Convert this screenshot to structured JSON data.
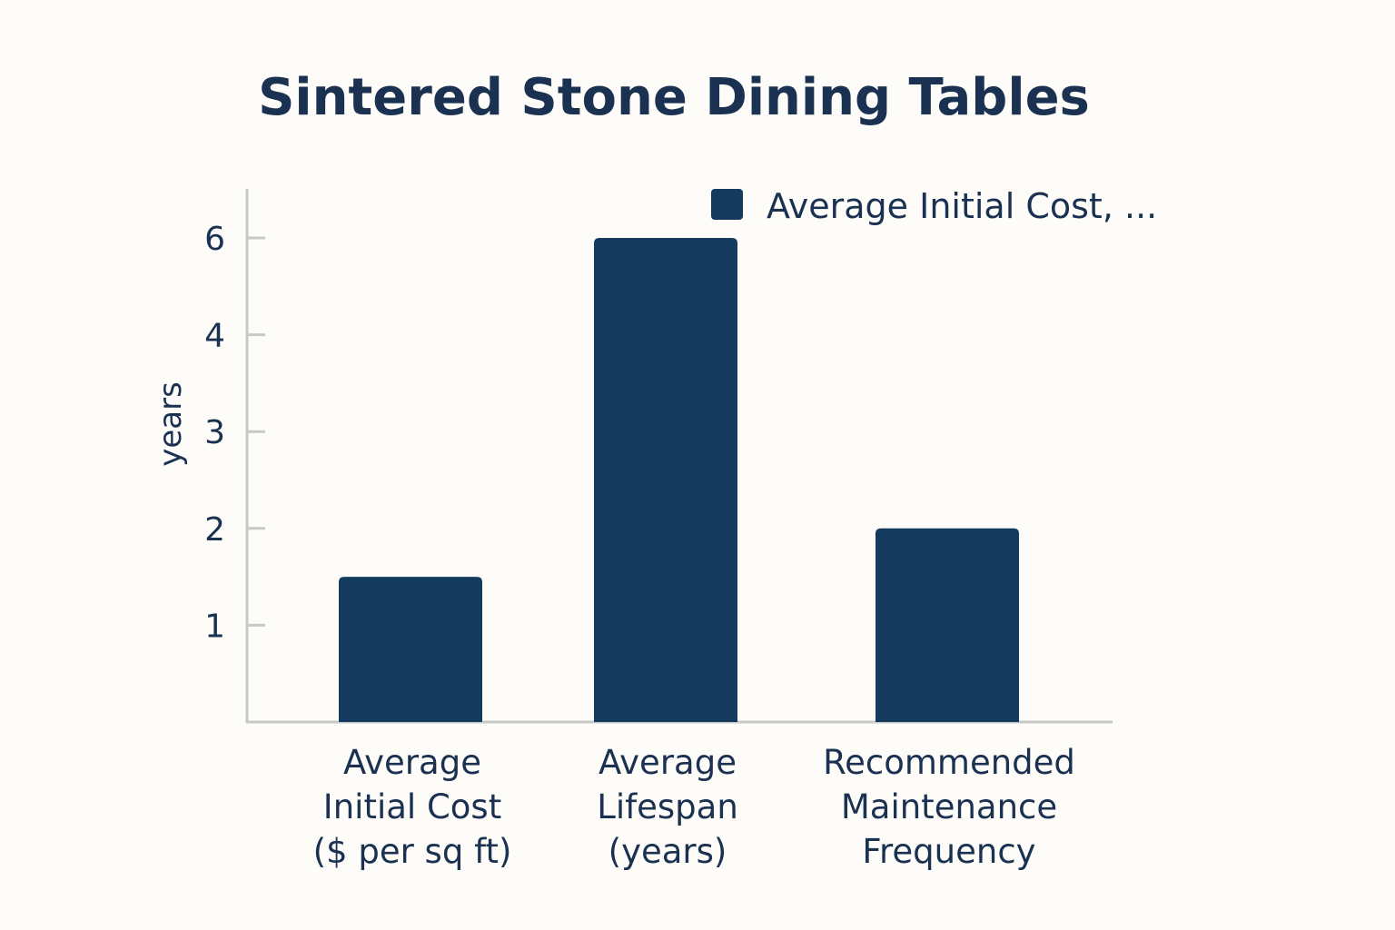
{
  "chart_data": {
    "type": "bar",
    "title": "Sintered Stone Dining Tables",
    "xlabel": "",
    "ylabel": "years",
    "categories": [
      [
        "Average",
        "Initial Cost",
        "($ per sq ft)"
      ],
      [
        "Average",
        "Lifespan",
        "(years)"
      ],
      [
        "Recommended",
        "Maintenance",
        "Frequency"
      ]
    ],
    "series": [
      {
        "name": "Average Initial Cost, ...",
        "values": [
          1.5,
          6,
          2
        ],
        "color": "#143a5e"
      }
    ],
    "y_ticks": [
      1,
      2,
      3,
      4,
      6
    ],
    "ylim": [
      0,
      6
    ],
    "grid": false,
    "legend_position": "top-right"
  }
}
